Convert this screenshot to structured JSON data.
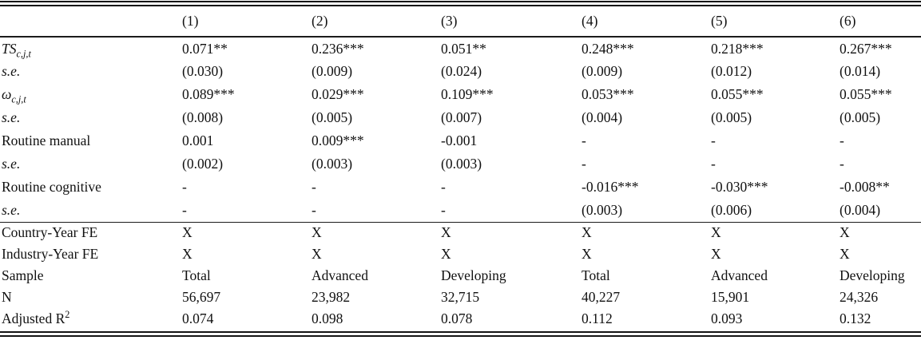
{
  "table": {
    "column_headers": [
      "(1)",
      "(2)",
      "(3)",
      "(4)",
      "(5)",
      "(6)"
    ],
    "coefficient_rows": [
      {
        "label": "TS",
        "label_sub": "c,j,t",
        "label_style": "math-italic",
        "values": [
          "0.071**",
          "0.236***",
          "0.051**",
          "0.248***",
          "0.218***",
          "0.267***"
        ]
      },
      {
        "label": "s.e.",
        "label_style": "italic",
        "values": [
          "(0.030)",
          "(0.009)",
          "(0.024)",
          "(0.009)",
          "(0.012)",
          "(0.014)"
        ]
      },
      {
        "label": "ω",
        "label_sub": "c,j,t",
        "label_style": "math-italic",
        "values": [
          "0.089***",
          "0.029***",
          "0.109***",
          "0.053***",
          "0.055***",
          "0.055***"
        ]
      },
      {
        "label": "s.e.",
        "label_style": "italic",
        "values": [
          "(0.008)",
          "(0.005)",
          "(0.007)",
          "(0.004)",
          "(0.005)",
          "(0.005)"
        ]
      },
      {
        "label": "Routine manual",
        "label_style": "normal",
        "values": [
          "0.001",
          "0.009***",
          "-0.001",
          "-",
          "-",
          "-"
        ]
      },
      {
        "label": "s.e.",
        "label_style": "italic",
        "values": [
          "(0.002)",
          "(0.003)",
          "(0.003)",
          "-",
          "-",
          "-"
        ]
      },
      {
        "label": "Routine cognitive",
        "label_style": "normal",
        "values": [
          "-",
          "-",
          "-",
          "-0.016***",
          "-0.030***",
          "-0.008**"
        ]
      },
      {
        "label": "s.e.",
        "label_style": "italic",
        "values": [
          "-",
          "-",
          "-",
          "(0.003)",
          "(0.006)",
          "(0.004)"
        ]
      }
    ],
    "summary_rows": [
      {
        "label": "Country-Year FE",
        "label_style": "normal",
        "values": [
          "X",
          "X",
          "X",
          "X",
          "X",
          "X"
        ]
      },
      {
        "label": "Industry-Year FE",
        "label_style": "normal",
        "values": [
          "X",
          "X",
          "X",
          "X",
          "X",
          "X"
        ]
      },
      {
        "label": "Sample",
        "label_style": "normal",
        "values": [
          "Total",
          "Advanced",
          "Developing",
          "Total",
          "Advanced",
          "Developing"
        ]
      },
      {
        "label": "N",
        "label_style": "normal",
        "values": [
          "56,697",
          "23,982",
          "32,715",
          "40,227",
          "15,901",
          "24,326"
        ]
      },
      {
        "label": "Adjusted R",
        "label_sup": "2",
        "label_style": "normal",
        "values": [
          "0.074",
          "0.098",
          "0.078",
          "0.112",
          "0.093",
          "0.132"
        ]
      }
    ]
  }
}
